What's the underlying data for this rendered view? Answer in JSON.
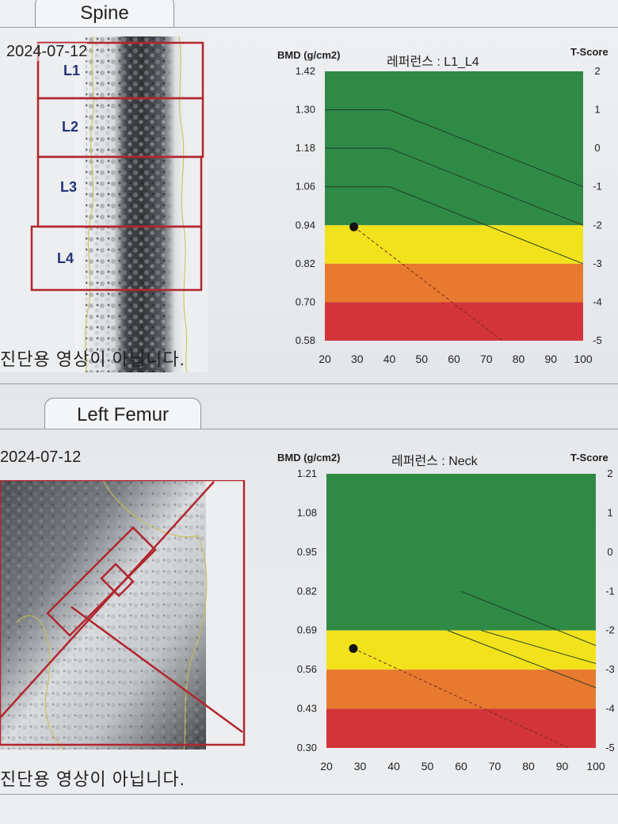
{
  "spine": {
    "tab_title": "Spine",
    "date": "2024-07-12",
    "vertebrae": [
      "L1",
      "L2",
      "L3",
      "L4"
    ],
    "note": "진단용 영상이 아닙니다."
  },
  "femur": {
    "tab_title": "Left Femur",
    "date": "2024-07-12",
    "note": "진단용 영상이 아닙니다."
  },
  "colors": {
    "green": "#2f8a45",
    "green_dark": "#247a3a",
    "yellow": "#f2e21c",
    "orange": "#e77a2e",
    "red": "#d2343a",
    "marker": "#c0202a"
  },
  "chart_data": [
    {
      "type": "line",
      "ylabel": "BMD (g/cm2)",
      "y2label": "T-Score",
      "reference_label": "레퍼런스 : L1_L4",
      "x_ticks": [
        "20",
        "30",
        "40",
        "50",
        "60",
        "70",
        "80",
        "90",
        "100"
      ],
      "y_ticks": [
        "1.42",
        "1.30",
        "1.18",
        "1.06",
        "0.94",
        "0.82",
        "0.70",
        "0.58"
      ],
      "t_ticks": [
        "2",
        "1",
        "0",
        "-1",
        "-2",
        "-3",
        "-4",
        "-5"
      ],
      "xlim": [
        20,
        100
      ],
      "ylim": [
        0.58,
        1.42
      ],
      "bands": [
        {
          "from": 0.94,
          "to": 1.42,
          "color": "green"
        },
        {
          "from": 0.82,
          "to": 0.94,
          "color": "yellow"
        },
        {
          "from": 0.7,
          "to": 0.82,
          "color": "orange"
        },
        {
          "from": 0.58,
          "to": 0.7,
          "color": "red"
        }
      ],
      "reference_curves": [
        {
          "points": [
            [
              20,
              1.3
            ],
            [
              40,
              1.3
            ],
            [
              100,
              1.06
            ]
          ]
        },
        {
          "points": [
            [
              20,
              1.18
            ],
            [
              40,
              1.18
            ],
            [
              100,
              0.94
            ]
          ]
        },
        {
          "points": [
            [
              20,
              1.06
            ],
            [
              40,
              1.06
            ],
            [
              100,
              0.82
            ]
          ]
        }
      ],
      "patient_point": {
        "x": 29,
        "y": 0.935
      },
      "projection": {
        "points": [
          [
            29,
            0.935
          ],
          [
            75,
            0.58
          ]
        ]
      }
    },
    {
      "type": "line",
      "ylabel": "BMD (g/cm2)",
      "y2label": "T-Score",
      "reference_label": "레퍼런스 : Neck",
      "x_ticks": [
        "20",
        "30",
        "40",
        "50",
        "60",
        "70",
        "80",
        "90",
        "100"
      ],
      "y_ticks": [
        "1.21",
        "1.08",
        "0.95",
        "0.82",
        "0.69",
        "0.56",
        "0.43",
        "0.30"
      ],
      "t_ticks": [
        "2",
        "1",
        "0",
        "-1",
        "-2",
        "-3",
        "-4",
        "-5"
      ],
      "xlim": [
        20,
        100
      ],
      "ylim": [
        0.3,
        1.21
      ],
      "bands": [
        {
          "from": 0.69,
          "to": 1.21,
          "color": "green"
        },
        {
          "from": 0.56,
          "to": 0.69,
          "color": "yellow"
        },
        {
          "from": 0.43,
          "to": 0.56,
          "color": "orange"
        },
        {
          "from": 0.3,
          "to": 0.43,
          "color": "red"
        }
      ],
      "reference_curves": [
        {
          "points": [
            [
              60,
              0.82
            ],
            [
              100,
              0.64
            ]
          ]
        },
        {
          "points": [
            [
              66,
              0.69
            ],
            [
              100,
              0.58
            ]
          ]
        },
        {
          "points": [
            [
              56,
              0.69
            ],
            [
              100,
              0.5
            ]
          ]
        }
      ],
      "patient_point": {
        "x": 28,
        "y": 0.63
      },
      "projection": {
        "points": [
          [
            28,
            0.63
          ],
          [
            92,
            0.3
          ]
        ]
      }
    }
  ]
}
